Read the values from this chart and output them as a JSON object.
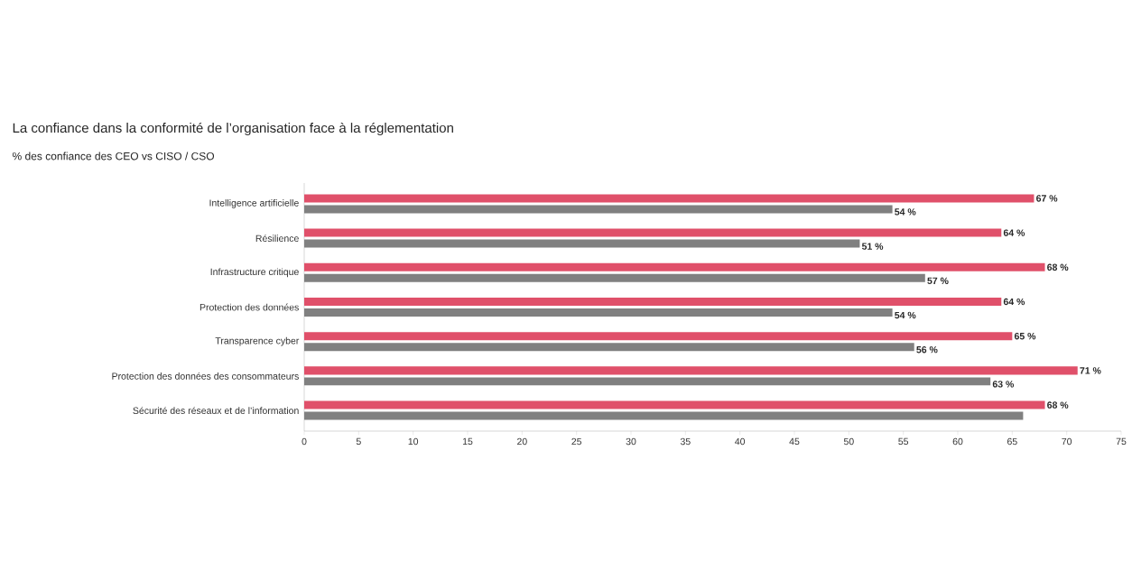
{
  "chart_data": {
    "type": "bar",
    "orientation": "horizontal",
    "title": "La confiance dans la conformité de l’organisation face à la réglementation",
    "subtitle": "% des confiance des CEO vs CISO / CSO",
    "categories": [
      "Intelligence artificielle",
      "Résilience",
      "Infrastructure critique",
      "Protection des données",
      "Transparence cyber",
      "Protection des données des consommateurs",
      "Sécurité des réseaux et de l’information"
    ],
    "series": [
      {
        "color": "#e0506a",
        "values": [
          67,
          64,
          68,
          64,
          65,
          71,
          68
        ],
        "value_labels": [
          "67 %",
          "64 %",
          "68 %",
          "64 %",
          "65 %",
          "71 %",
          "68 %"
        ]
      },
      {
        "color": "#808080",
        "values": [
          54,
          51,
          57,
          54,
          56,
          63,
          66
        ],
        "value_labels": [
          "54 %",
          "51 %",
          "57 %",
          "54 %",
          "56 %",
          "63 %",
          null
        ]
      }
    ],
    "xlim": [
      0,
      75
    ],
    "xticks": [
      0,
      5,
      10,
      15,
      20,
      25,
      30,
      35,
      40,
      45,
      50,
      55,
      60,
      65,
      70,
      75
    ]
  }
}
